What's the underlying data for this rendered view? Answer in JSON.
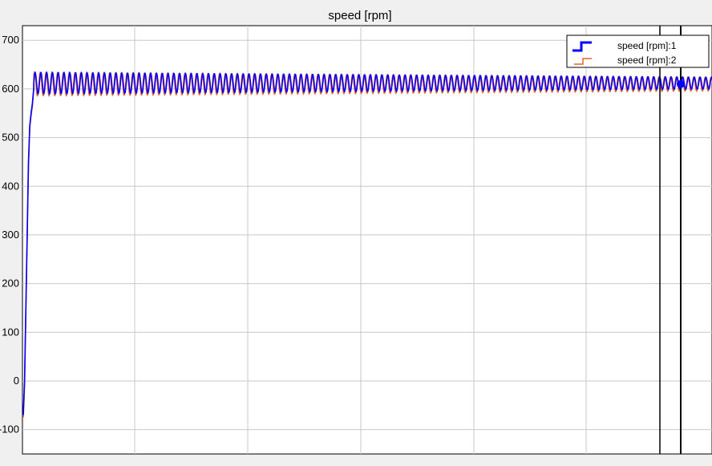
{
  "chart_data": {
    "type": "line",
    "title": "speed [rpm]",
    "xlabel": "",
    "ylabel": "",
    "ylim": [
      -150,
      730
    ],
    "y_ticks": [
      -100,
      0,
      100,
      200,
      300,
      400,
      500,
      600,
      700
    ],
    "grid": true,
    "legend_position": "top-right",
    "colors": {
      "series1": "#0000ff",
      "series2": "#e8612c",
      "background": "#ffffff",
      "figure_bg": "#f0f0f0"
    },
    "series": [
      {
        "name": "speed [rpm]:1",
        "startup": [
          -70,
          0,
          150,
          300,
          450,
          525,
          550,
          570,
          600
        ],
        "steady_mean": 612,
        "steady_amplitude_start": 22,
        "steady_amplitude_end": 12
      },
      {
        "name": "speed [rpm]:2",
        "startup": [
          -75,
          -10,
          140,
          290,
          440,
          520,
          545,
          565,
          598
        ],
        "steady_mean": 610,
        "steady_amplitude_start": 24,
        "steady_amplitude_end": 14
      }
    ]
  },
  "cursor": {
    "marker_value": 610
  }
}
